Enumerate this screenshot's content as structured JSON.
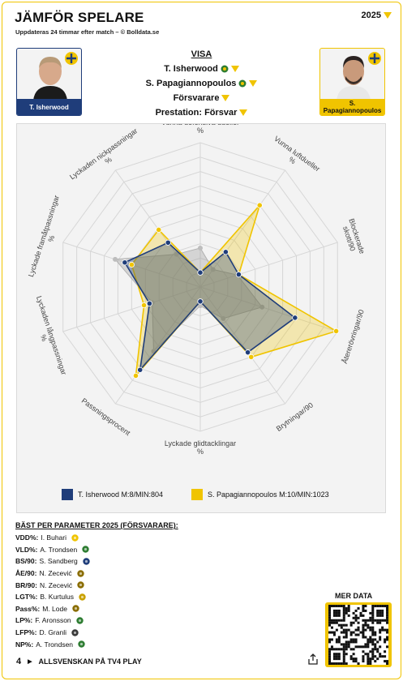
{
  "header": {
    "title": "JÄMFÖR SPELARE",
    "subtitle": "Uppdateras 24 timmar efter match – © Bolldata.se",
    "season": "2025"
  },
  "players": {
    "left": {
      "name": "T. Isherwood"
    },
    "right": {
      "name": "S. Papagiannopoulos"
    }
  },
  "visa": {
    "heading": "VISA",
    "player1": "T. Isherwood",
    "player2": "S. Papagiannopoulos",
    "position": "Försvarare",
    "profile": "Prestation: Försvar"
  },
  "chart_data": {
    "type": "radar",
    "axes": [
      "Vunna defensiva dueller %",
      "Vunna luftdueller %",
      "Blockerade skott/90",
      "Återerövringar/90",
      "Brytningar/90",
      "Lyckade glidtacklingar %",
      "Passningsprocent",
      "Lyckaden långpassningar %",
      "Lyckade framåtpassningar %",
      "Lyckaden nickpassningar %"
    ],
    "rmax": 10,
    "series": [
      {
        "name": "T. Isherwood M:8/MIN:804",
        "color": "#1f3d7a",
        "values": [
          1.0,
          3.0,
          2.8,
          6.9,
          5.6,
          1.0,
          7.1,
          3.7,
          5.5,
          3.8
        ]
      },
      {
        "name": "S. Papagiannopoulos M:10/MIN:1023",
        "color": "#f0c400",
        "values": [
          1.0,
          7.0,
          2.8,
          9.9,
          6.0,
          1.0,
          7.6,
          4.1,
          5.0,
          4.9
        ]
      }
    ],
    "grey_values": [
      2.7,
      1.5,
      2.7,
      4.5,
      2.7,
      1.3,
      5.5,
      3.5,
      6.2,
      2.8
    ]
  },
  "best": {
    "heading": "BÄST PER PARAMETER 2025 (FÖRSVARARE):",
    "items": [
      {
        "key": "VDD%:",
        "player": "I. Buhari"
      },
      {
        "key": "VLD%:",
        "player": "A. Trondsen"
      },
      {
        "key": "BS/90:",
        "player": "S. Sandberg"
      },
      {
        "key": "ÅE/90:",
        "player": "N. Zecević"
      },
      {
        "key": "BR/90:",
        "player": "N. Zecević"
      },
      {
        "key": "LGT%:",
        "player": "B. Kurtulus"
      },
      {
        "key": "Pass%:",
        "player": "M. Lode"
      },
      {
        "key": "LP%:",
        "player": "F. Aronsson"
      },
      {
        "key": "LFP%:",
        "player": "D. Granli"
      },
      {
        "key": "NP%:",
        "player": "A. Trondsen"
      }
    ]
  },
  "mer_data": "MER DATA",
  "footer": {
    "brand": "4",
    "text": "ALLSVENSKAN PÅ TV4 PLAY"
  }
}
